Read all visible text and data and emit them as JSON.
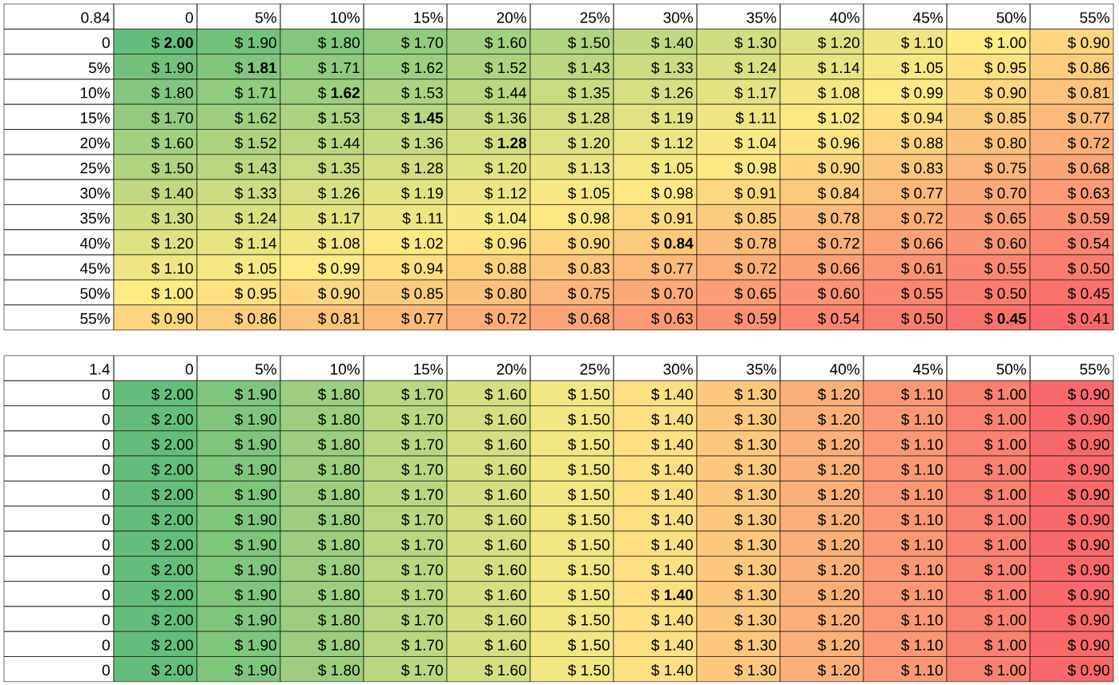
{
  "chart_data": [
    {
      "type": "heatmap",
      "title": "0.84",
      "colors": [
        "#f8696b",
        "#ffeb84",
        "#63be7b"
      ],
      "categories": [
        "0",
        "5%",
        "10%",
        "15%",
        "20%",
        "25%",
        "30%",
        "35%",
        "40%",
        "45%",
        "50%",
        "55%"
      ],
      "y_categories": [
        "0",
        "5%",
        "10%",
        "15%",
        "20%",
        "25%",
        "30%",
        "35%",
        "40%",
        "45%",
        "50%",
        "55%"
      ],
      "cells": [
        [
          2.0,
          1.9,
          1.8,
          1.7,
          1.6,
          1.5,
          1.4,
          1.3,
          1.2,
          1.1,
          1.0,
          0.9
        ],
        [
          1.9,
          1.81,
          1.71,
          1.62,
          1.52,
          1.43,
          1.33,
          1.24,
          1.14,
          1.05,
          0.95,
          0.86
        ],
        [
          1.8,
          1.71,
          1.62,
          1.53,
          1.44,
          1.35,
          1.26,
          1.17,
          1.08,
          0.99,
          0.9,
          0.81
        ],
        [
          1.7,
          1.62,
          1.53,
          1.45,
          1.36,
          1.28,
          1.19,
          1.11,
          1.02,
          0.94,
          0.85,
          0.77
        ],
        [
          1.6,
          1.52,
          1.44,
          1.36,
          1.28,
          1.2,
          1.12,
          1.04,
          0.96,
          0.88,
          0.8,
          0.72
        ],
        [
          1.5,
          1.43,
          1.35,
          1.28,
          1.2,
          1.13,
          1.05,
          0.98,
          0.9,
          0.83,
          0.75,
          0.68
        ],
        [
          1.4,
          1.33,
          1.26,
          1.19,
          1.12,
          1.05,
          0.98,
          0.91,
          0.84,
          0.77,
          0.7,
          0.63
        ],
        [
          1.3,
          1.24,
          1.17,
          1.11,
          1.04,
          0.98,
          0.91,
          0.85,
          0.78,
          0.72,
          0.65,
          0.59
        ],
        [
          1.2,
          1.14,
          1.08,
          1.02,
          0.96,
          0.9,
          0.84,
          0.78,
          0.72,
          0.66,
          0.6,
          0.54
        ],
        [
          1.1,
          1.05,
          0.99,
          0.94,
          0.88,
          0.83,
          0.77,
          0.72,
          0.66,
          0.61,
          0.55,
          0.5
        ],
        [
          1.0,
          0.95,
          0.9,
          0.85,
          0.8,
          0.75,
          0.7,
          0.65,
          0.6,
          0.55,
          0.5,
          0.45
        ],
        [
          0.9,
          0.86,
          0.81,
          0.77,
          0.72,
          0.68,
          0.63,
          0.59,
          0.54,
          0.5,
          0.45,
          0.41
        ]
      ],
      "cell_labels": [
        [
          "$ **2.00**",
          "$ 1.90",
          "$ 1.80",
          "$ 1.70",
          "$ 1.60",
          "$ 1.50",
          "$ 1.40",
          "$ 1.30",
          "$ 1.20",
          "$ 1.10",
          "$ 1.00",
          "$ 0.90"
        ],
        [
          "$ 1.90",
          "$ **1.81**",
          "$ 1.71",
          "$ 1.62",
          "$ 1.52",
          "$ 1.43",
          "$ 1.33",
          "$ 1.24",
          "$ 1.14",
          "$ 1.05",
          "$ 0.95",
          "$ 0.86"
        ],
        [
          "$ 1.80",
          "$ 1.71",
          "$ **1.62**",
          "$ 1.53",
          "$ 1.44",
          "$ 1.35",
          "$ 1.26",
          "$ 1.17",
          "$ 1.08",
          "$ 0.99",
          "$ 0.90",
          "$ 0.81"
        ],
        [
          "$ 1.70",
          "$ 1.62",
          "$ 1.53",
          "$ **1.45**",
          "$ 1.36",
          "$ 1.28",
          "$ 1.19",
          "$ 1.11",
          "$ 1.02",
          "$ 0.94",
          "$ 0.85",
          "$ 0.77"
        ],
        [
          "$ 1.60",
          "$ 1.52",
          "$ 1.44",
          "$ 1.36",
          "$ **1.28**",
          "$ 1.20",
          "$ 1.12",
          "$ 1.04",
          "$ 0.96",
          "$ 0.88",
          "$ 0.80",
          "$ 0.72"
        ],
        [
          "$ 1.50",
          "$ 1.43",
          "$ 1.35",
          "$ 1.28",
          "$ 1.20",
          "$ 1.13",
          "$ 1.05",
          "$ 0.98",
          "$ 0.90",
          "$ 0.83",
          "$ 0.75",
          "$ 0.68"
        ],
        [
          "$ 1.40",
          "$ 1.33",
          "$ 1.26",
          "$ 1.19",
          "$ 1.12",
          "$ 1.05",
          "$ 0.98",
          "$ 0.91",
          "$ 0.84",
          "$ 0.77",
          "$ 0.70",
          "$ 0.63"
        ],
        [
          "$ 1.30",
          "$ 1.24",
          "$ 1.17",
          "$ 1.11",
          "$ 1.04",
          "$ 0.98",
          "$ 0.91",
          "$ 0.85",
          "$ 0.78",
          "$ 0.72",
          "$ 0.65",
          "$ 0.59"
        ],
        [
          "$ 1.20",
          "$ 1.14",
          "$ 1.08",
          "$ 1.02",
          "$ 0.96",
          "$ 0.90",
          "$ **0.84**",
          "$ 0.78",
          "$ 0.72",
          "$ 0.66",
          "$ 0.60",
          "$ 0.54"
        ],
        [
          "$ 1.10",
          "$ 1.05",
          "$ 0.99",
          "$ 0.94",
          "$ 0.88",
          "$ 0.83",
          "$ 0.77",
          "$ 0.72",
          "$ 0.66",
          "$ 0.61",
          "$ 0.55",
          "$ 0.50"
        ],
        [
          "$ 1.00",
          "$ 0.95",
          "$ 0.90",
          "$ 0.85",
          "$ 0.80",
          "$ 0.75",
          "$ 0.70",
          "$ 0.65",
          "$ 0.60",
          "$ 0.55",
          "$ 0.50",
          "$ 0.45"
        ],
        [
          "$ 0.90",
          "$ 0.86",
          "$ 0.81",
          "$ 0.77",
          "$ 0.72",
          "$ 0.68",
          "$ 0.63",
          "$ 0.59",
          "$ 0.54",
          "$ 0.50",
          "$ **0.45**",
          "$ 0.41"
        ]
      ]
    },
    {
      "type": "heatmap",
      "title": "1.4",
      "colors": [
        "#f8696b",
        "#ffeb84",
        "#63be7b"
      ],
      "categories": [
        "0",
        "5%",
        "10%",
        "15%",
        "20%",
        "25%",
        "30%",
        "35%",
        "40%",
        "45%",
        "50%",
        "55%"
      ],
      "y_categories": [
        "0",
        "0",
        "0",
        "0",
        "0",
        "0",
        "0",
        "0",
        "0",
        "0",
        "0",
        "0"
      ],
      "cells": [
        [
          2.0,
          1.9,
          1.8,
          1.7,
          1.6,
          1.5,
          1.4,
          1.3,
          1.2,
          1.1,
          1.0,
          0.9
        ],
        [
          2.0,
          1.9,
          1.8,
          1.7,
          1.6,
          1.5,
          1.4,
          1.3,
          1.2,
          1.1,
          1.0,
          0.9
        ],
        [
          2.0,
          1.9,
          1.8,
          1.7,
          1.6,
          1.5,
          1.4,
          1.3,
          1.2,
          1.1,
          1.0,
          0.9
        ],
        [
          2.0,
          1.9,
          1.8,
          1.7,
          1.6,
          1.5,
          1.4,
          1.3,
          1.2,
          1.1,
          1.0,
          0.9
        ],
        [
          2.0,
          1.9,
          1.8,
          1.7,
          1.6,
          1.5,
          1.4,
          1.3,
          1.2,
          1.1,
          1.0,
          0.9
        ],
        [
          2.0,
          1.9,
          1.8,
          1.7,
          1.6,
          1.5,
          1.4,
          1.3,
          1.2,
          1.1,
          1.0,
          0.9
        ],
        [
          2.0,
          1.9,
          1.8,
          1.7,
          1.6,
          1.5,
          1.4,
          1.3,
          1.2,
          1.1,
          1.0,
          0.9
        ],
        [
          2.0,
          1.9,
          1.8,
          1.7,
          1.6,
          1.5,
          1.4,
          1.3,
          1.2,
          1.1,
          1.0,
          0.9
        ],
        [
          2.0,
          1.9,
          1.8,
          1.7,
          1.6,
          1.5,
          1.4,
          1.3,
          1.2,
          1.1,
          1.0,
          0.9
        ],
        [
          2.0,
          1.9,
          1.8,
          1.7,
          1.6,
          1.5,
          1.4,
          1.3,
          1.2,
          1.1,
          1.0,
          0.9
        ],
        [
          2.0,
          1.9,
          1.8,
          1.7,
          1.6,
          1.5,
          1.4,
          1.3,
          1.2,
          1.1,
          1.0,
          0.9
        ],
        [
          2.0,
          1.9,
          1.8,
          1.7,
          1.6,
          1.5,
          1.4,
          1.3,
          1.2,
          1.1,
          1.0,
          0.9
        ]
      ],
      "cell_labels": [
        [
          "$ 2.00",
          "$ 1.90",
          "$ 1.80",
          "$ 1.70",
          "$ 1.60",
          "$ 1.50",
          "$ 1.40",
          "$ 1.30",
          "$ 1.20",
          "$ 1.10",
          "$ 1.00",
          "$ 0.90"
        ],
        [
          "$ 2.00",
          "$ 1.90",
          "$ 1.80",
          "$ 1.70",
          "$ 1.60",
          "$ 1.50",
          "$ 1.40",
          "$ 1.30",
          "$ 1.20",
          "$ 1.10",
          "$ 1.00",
          "$ 0.90"
        ],
        [
          "$ 2.00",
          "$ 1.90",
          "$ 1.80",
          "$ 1.70",
          "$ 1.60",
          "$ 1.50",
          "$ 1.40",
          "$ 1.30",
          "$ 1.20",
          "$ 1.10",
          "$ 1.00",
          "$ 0.90"
        ],
        [
          "$ 2.00",
          "$ 1.90",
          "$ 1.80",
          "$ 1.70",
          "$ 1.60",
          "$ 1.50",
          "$ 1.40",
          "$ 1.30",
          "$ 1.20",
          "$ 1.10",
          "$ 1.00",
          "$ 0.90"
        ],
        [
          "$ 2.00",
          "$ 1.90",
          "$ 1.80",
          "$ 1.70",
          "$ 1.60",
          "$ 1.50",
          "$ 1.40",
          "$ 1.30",
          "$ 1.20",
          "$ 1.10",
          "$ 1.00",
          "$ 0.90"
        ],
        [
          "$ 2.00",
          "$ 1.90",
          "$ 1.80",
          "$ 1.70",
          "$ 1.60",
          "$ 1.50",
          "$ 1.40",
          "$ 1.30",
          "$ 1.20",
          "$ 1.10",
          "$ 1.00",
          "$ 0.90"
        ],
        [
          "$ 2.00",
          "$ 1.90",
          "$ 1.80",
          "$ 1.70",
          "$ 1.60",
          "$ 1.50",
          "$ 1.40",
          "$ 1.30",
          "$ 1.20",
          "$ 1.10",
          "$ 1.00",
          "$ 0.90"
        ],
        [
          "$ 2.00",
          "$ 1.90",
          "$ 1.80",
          "$ 1.70",
          "$ 1.60",
          "$ 1.50",
          "$ 1.40",
          "$ 1.30",
          "$ 1.20",
          "$ 1.10",
          "$ 1.00",
          "$ 0.90"
        ],
        [
          "$ 2.00",
          "$ 1.90",
          "$ 1.80",
          "$ 1.70",
          "$ 1.60",
          "$ 1.50",
          "$ **1.40**",
          "$ 1.30",
          "$ 1.20",
          "$ 1.10",
          "$ 1.00",
          "$ 0.90"
        ],
        [
          "$ 2.00",
          "$ 1.90",
          "$ 1.80",
          "$ 1.70",
          "$ 1.60",
          "$ 1.50",
          "$ 1.40",
          "$ 1.30",
          "$ 1.20",
          "$ 1.10",
          "$ 1.00",
          "$ 0.90"
        ],
        [
          "$ 2.00",
          "$ 1.90",
          "$ 1.80",
          "$ 1.70",
          "$ 1.60",
          "$ 1.50",
          "$ 1.40",
          "$ 1.30",
          "$ 1.20",
          "$ 1.10",
          "$ 1.00",
          "$ 0.90"
        ],
        [
          "$ 2.00",
          "$ 1.90",
          "$ 1.80",
          "$ 1.70",
          "$ 1.60",
          "$ 1.50",
          "$ 1.40",
          "$ 1.30",
          "$ 1.20",
          "$ 1.10",
          "$ 1.00",
          "$ 0.90"
        ]
      ]
    }
  ]
}
